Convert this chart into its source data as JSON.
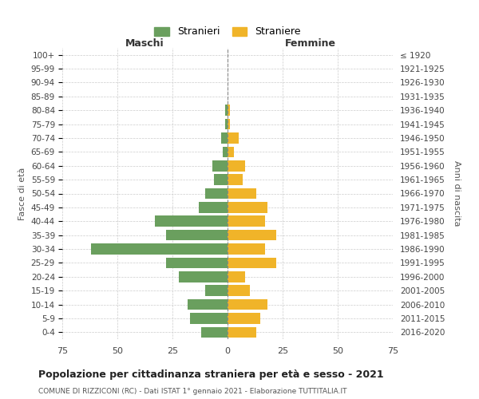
{
  "age_groups": [
    "0-4",
    "5-9",
    "10-14",
    "15-19",
    "20-24",
    "25-29",
    "30-34",
    "35-39",
    "40-44",
    "45-49",
    "50-54",
    "55-59",
    "60-64",
    "65-69",
    "70-74",
    "75-79",
    "80-84",
    "85-89",
    "90-94",
    "95-99",
    "100+"
  ],
  "birth_years": [
    "2016-2020",
    "2011-2015",
    "2006-2010",
    "2001-2005",
    "1996-2000",
    "1991-1995",
    "1986-1990",
    "1981-1985",
    "1976-1980",
    "1971-1975",
    "1966-1970",
    "1961-1965",
    "1956-1960",
    "1951-1955",
    "1946-1950",
    "1941-1945",
    "1936-1940",
    "1931-1935",
    "1926-1930",
    "1921-1925",
    "≤ 1920"
  ],
  "stranieri": [
    12,
    17,
    18,
    10,
    22,
    28,
    62,
    28,
    33,
    13,
    10,
    6,
    7,
    2,
    3,
    1,
    1,
    0,
    0,
    0,
    0
  ],
  "straniere": [
    13,
    15,
    18,
    10,
    8,
    22,
    17,
    22,
    17,
    18,
    13,
    7,
    8,
    3,
    5,
    1,
    1,
    0,
    0,
    0,
    0
  ],
  "color_stranieri": "#6a9f5e",
  "color_straniere": "#f0b429",
  "xlim": 75,
  "title": "Popolazione per cittadinanza straniera per età e sesso - 2021",
  "subtitle": "COMUNE DI RIZZICONI (RC) - Dati ISTAT 1° gennaio 2021 - Elaborazione TUTTITALIA.IT",
  "xlabel_left": "Maschi",
  "xlabel_right": "Femmine",
  "ylabel_left": "Fasce di età",
  "ylabel_right": "Anni di nascita",
  "legend_stranieri": "Stranieri",
  "legend_straniere": "Straniere",
  "background_color": "#ffffff",
  "grid_color": "#cccccc"
}
